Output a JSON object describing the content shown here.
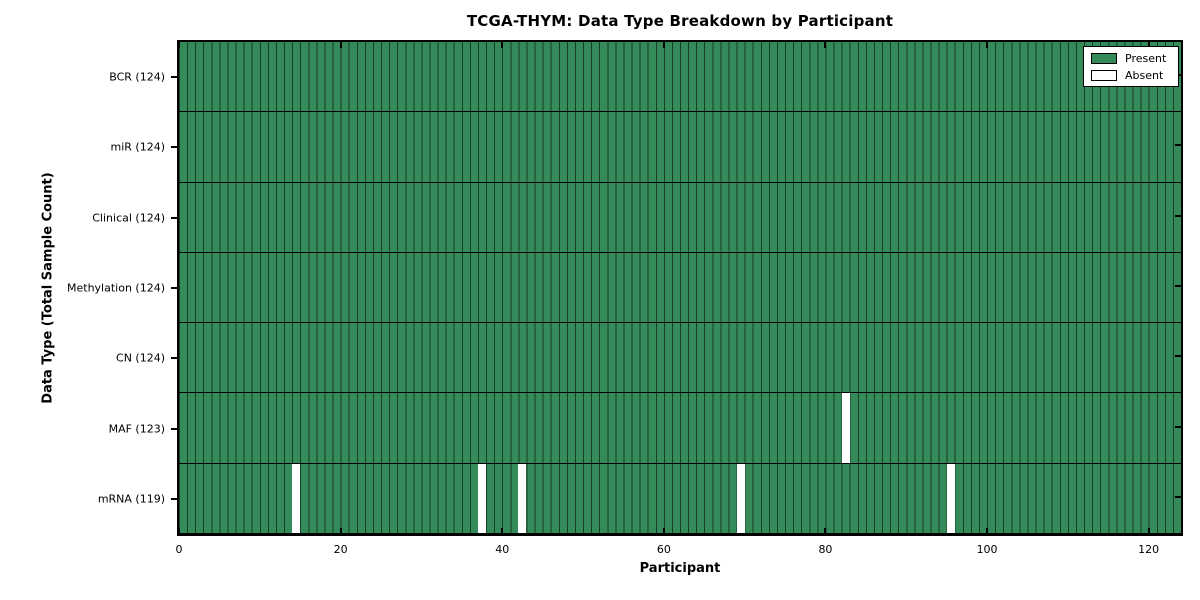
{
  "chart_data": {
    "type": "heatmap",
    "title": "TCGA-THYM: Data Type Breakdown by Participant",
    "xlabel": "Participant",
    "ylabel": "Data Type (Total Sample Count)",
    "x_ticks": [
      0,
      20,
      40,
      60,
      80,
      100,
      120
    ],
    "x_range": [
      0,
      124
    ],
    "n_participants": 124,
    "rows": [
      {
        "id": "bcr",
        "label": "BCR (124)",
        "total": 124,
        "absent_participants": []
      },
      {
        "id": "mir",
        "label": "miR (124)",
        "total": 124,
        "absent_participants": []
      },
      {
        "id": "clinical",
        "label": "Clinical (124)",
        "total": 124,
        "absent_participants": []
      },
      {
        "id": "methylation",
        "label": "Methylation (124)",
        "total": 124,
        "absent_participants": []
      },
      {
        "id": "cn",
        "label": "CN (124)",
        "total": 124,
        "absent_participants": []
      },
      {
        "id": "maf",
        "label": "MAF (123)",
        "total": 123,
        "absent_participants": [
          82
        ]
      },
      {
        "id": "mrna",
        "label": "mRNA (119)",
        "total": 119,
        "absent_participants": [
          14,
          37,
          42,
          69,
          95
        ]
      }
    ],
    "legend": [
      {
        "label": "Present",
        "color": "#348a58"
      },
      {
        "label": "Absent",
        "color": "#ffffff"
      }
    ],
    "colors": {
      "present": "#348a58",
      "absent": "#ffffff",
      "cell_edge": "rgba(0,0,0,0.55)",
      "spine": "#000000"
    },
    "legend_position": "upper right",
    "grid": "cell-borders"
  }
}
